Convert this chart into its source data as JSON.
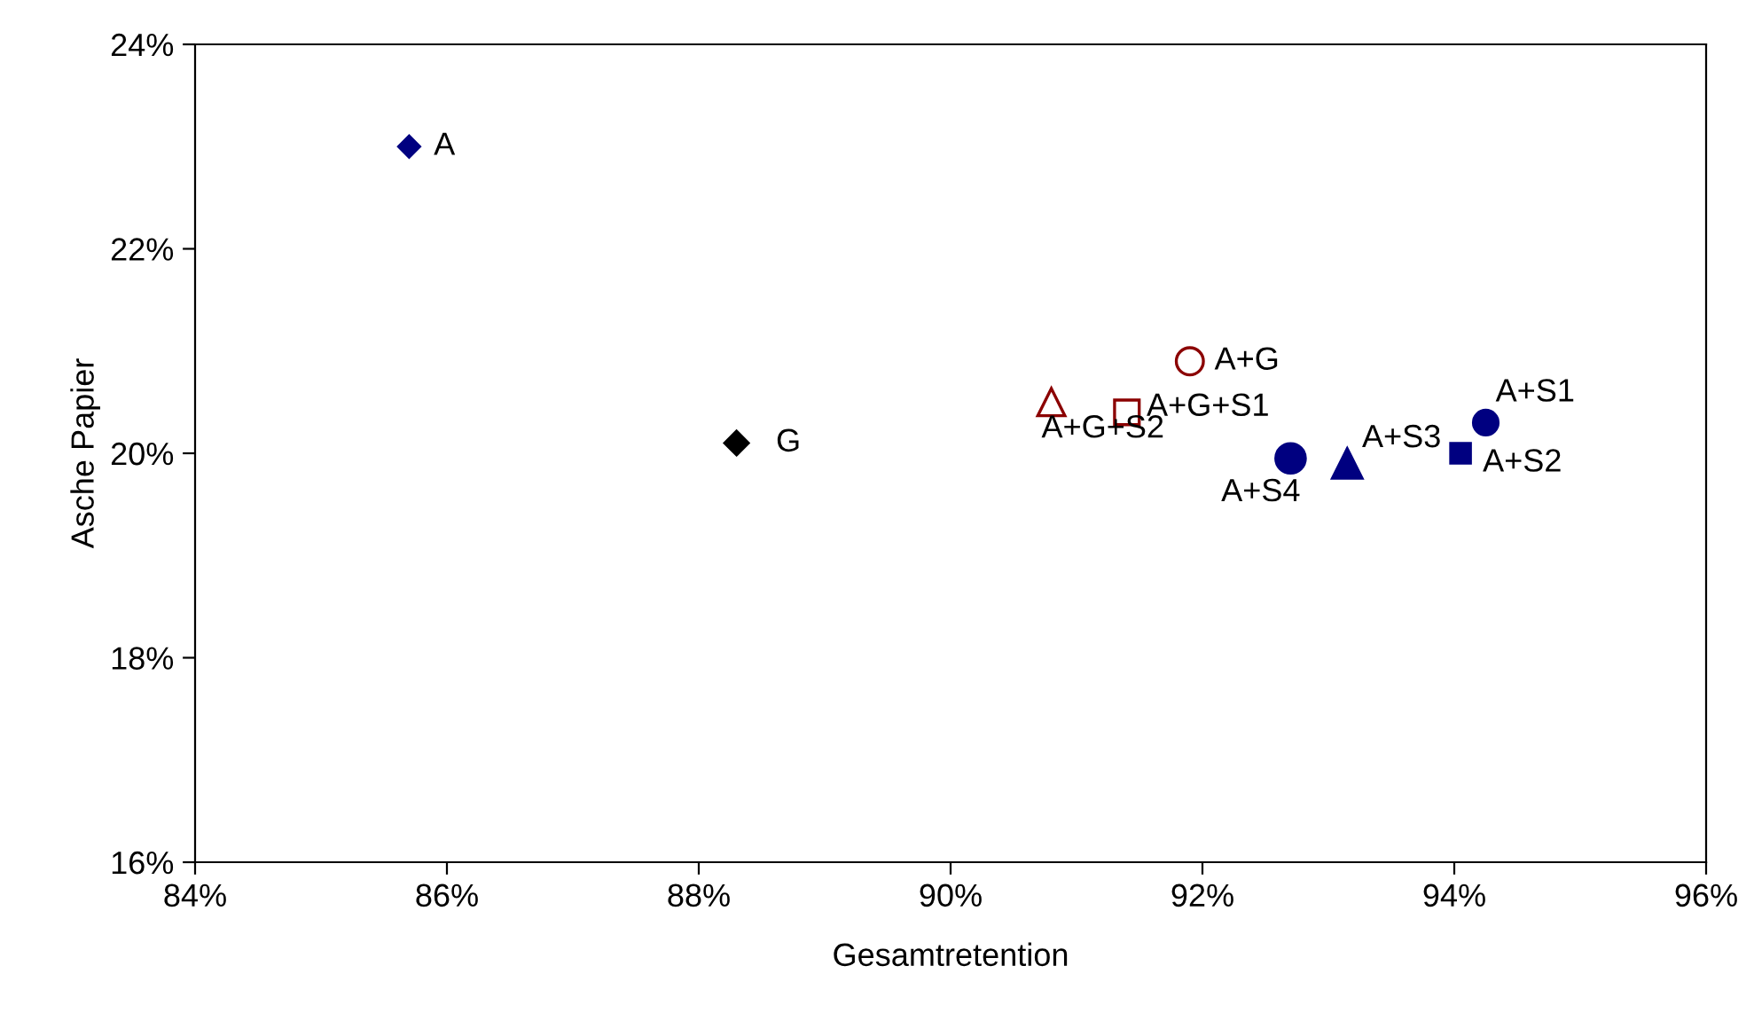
{
  "chart_data": {
    "type": "scatter",
    "xlabel": "Gesamtretention",
    "ylabel": "Asche Papier",
    "xlim": [
      84,
      96
    ],
    "xticks": [
      {
        "value": 84,
        "label": "84%"
      },
      {
        "value": 86,
        "label": "86%"
      },
      {
        "value": 88,
        "label": "88%"
      },
      {
        "value": 90,
        "label": "90%"
      },
      {
        "value": 92,
        "label": "92%"
      },
      {
        "value": 94,
        "label": "94%"
      },
      {
        "value": 96,
        "label": "96%"
      }
    ],
    "ylim": [
      16,
      24
    ],
    "yticks": [
      {
        "value": 16,
        "label": "16%"
      },
      {
        "value": 18,
        "label": "18%"
      },
      {
        "value": 20,
        "label": "20%"
      },
      {
        "value": 22,
        "label": "22%"
      },
      {
        "value": 24,
        "label": "24%"
      }
    ],
    "grid": false,
    "legend": false,
    "series": [
      {
        "name": "A",
        "color": "#000080",
        "marker": "diamond",
        "x": [
          85.7
        ],
        "values": [
          23.0
        ]
      },
      {
        "name": "G",
        "color": "#000000",
        "marker": "diamond",
        "x": [
          88.3
        ],
        "values": [
          20.1
        ]
      },
      {
        "name": "A+G",
        "color": "#8b0000",
        "marker": "circle",
        "x": [
          91.9
        ],
        "values": [
          20.9
        ]
      },
      {
        "name": "A+G+S2",
        "color": "#8b0000",
        "marker": "triangle",
        "x": [
          90.8
        ],
        "values": [
          20.5
        ]
      },
      {
        "name": "A+G+S1",
        "color": "#8b0000",
        "marker": "square",
        "x": [
          91.4
        ],
        "values": [
          20.4
        ]
      },
      {
        "name": "A+S4",
        "color": "#000080",
        "marker": "circle",
        "x": [
          92.7
        ],
        "values": [
          19.95
        ]
      },
      {
        "name": "A+S3",
        "color": "#000080",
        "marker": "triangle",
        "x": [
          93.15
        ],
        "values": [
          19.9
        ]
      },
      {
        "name": "A+S2",
        "color": "#000080",
        "marker": "square",
        "x": [
          94.05
        ],
        "values": [
          20.0
        ]
      },
      {
        "name": "A+S1",
        "color": "#000080",
        "marker": "circle",
        "x": [
          94.25
        ],
        "values": [
          20.3
        ]
      }
    ]
  }
}
